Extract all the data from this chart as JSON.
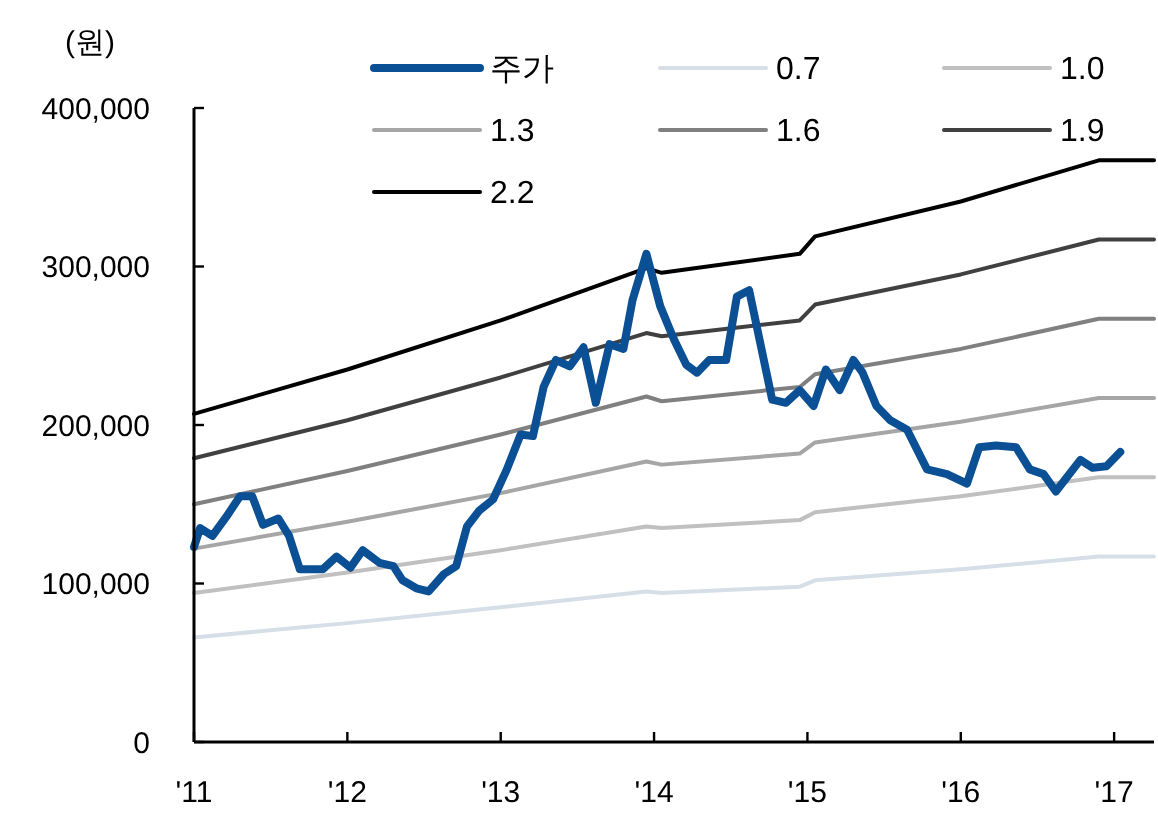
{
  "chart_data": {
    "type": "line",
    "ylabel": "(원)",
    "xlim": [
      2011,
      2017.26
    ],
    "ylim": [
      0,
      400000
    ],
    "xticks": [
      {
        "value": 2011,
        "label": "'11"
      },
      {
        "value": 2012,
        "label": "'12"
      },
      {
        "value": 2013,
        "label": "'13"
      },
      {
        "value": 2014,
        "label": "'14"
      },
      {
        "value": 2015,
        "label": "'15"
      },
      {
        "value": 2016,
        "label": "'16"
      },
      {
        "value": 2017,
        "label": "'17"
      }
    ],
    "yticks": [
      {
        "value": 0,
        "label": "0"
      },
      {
        "value": 100000,
        "label": "100,000"
      },
      {
        "value": 200000,
        "label": "200,000"
      },
      {
        "value": 300000,
        "label": "300,000"
      },
      {
        "value": 400000,
        "label": "400,000"
      }
    ],
    "grid": false,
    "legend": "top",
    "marker": "none",
    "line_style": "solid",
    "series": [
      {
        "name": "주가",
        "color": "#0b4f94",
        "x": [
          2011.0,
          2011.04,
          2011.12,
          2011.21,
          2011.3,
          2011.38,
          2011.45,
          2011.55,
          2011.62,
          2011.69,
          2011.84,
          2011.93,
          2012.02,
          2012.1,
          2012.21,
          2012.3,
          2012.36,
          2012.45,
          2012.53,
          2012.63,
          2012.71,
          2012.78,
          2012.86,
          2012.95,
          2013.04,
          2013.13,
          2013.21,
          2013.28,
          2013.36,
          2013.45,
          2013.54,
          2013.62,
          2013.71,
          2013.8,
          2013.86,
          2013.95,
          2014.04,
          2014.13,
          2014.21,
          2014.28,
          2014.36,
          2014.47,
          2014.54,
          2014.62,
          2014.77,
          2014.86,
          2014.95,
          2015.04,
          2015.12,
          2015.21,
          2015.3,
          2015.36,
          2015.45,
          2015.54,
          2015.65,
          2015.78,
          2015.91,
          2016.04,
          2016.12,
          2016.23,
          2016.36,
          2016.45,
          2016.54,
          2016.62,
          2016.78,
          2016.86,
          2016.95,
          2017.04
        ],
        "values": [
          123000,
          135000,
          130000,
          142000,
          155000,
          155000,
          137000,
          141000,
          130000,
          109000,
          109000,
          117000,
          110000,
          121000,
          113000,
          111000,
          102000,
          97000,
          95000,
          106000,
          111000,
          136000,
          146000,
          153000,
          172000,
          194000,
          193000,
          224000,
          241000,
          237000,
          249000,
          214000,
          251000,
          248000,
          279000,
          308000,
          275000,
          254000,
          238000,
          233000,
          241000,
          241000,
          281000,
          285000,
          216000,
          214000,
          222000,
          212000,
          235000,
          222000,
          241000,
          233000,
          212000,
          203000,
          197000,
          172000,
          169000,
          163000,
          186000,
          187000,
          186000,
          172000,
          169000,
          158000,
          178000,
          173000,
          174000,
          183000
        ]
      },
      {
        "name": "0.7",
        "color": "#d6dfe8",
        "x": [
          2011,
          2012,
          2013,
          2013.95,
          2014.05,
          2014.95,
          2015.05,
          2016,
          2016.9,
          2017.26
        ],
        "values": [
          66000,
          75000,
          85000,
          95000,
          94000,
          98000,
          102000,
          109000,
          117000,
          117000
        ]
      },
      {
        "name": "1.0",
        "color": "#c0c0c0",
        "x": [
          2011,
          2012,
          2013,
          2013.95,
          2014.05,
          2014.95,
          2015.05,
          2016,
          2016.9,
          2017.26
        ],
        "values": [
          94000,
          107000,
          121000,
          136000,
          135000,
          140000,
          145000,
          155000,
          167000,
          167000
        ]
      },
      {
        "name": "1.3",
        "color": "#a6a6a6",
        "x": [
          2011,
          2012,
          2013,
          2013.95,
          2014.05,
          2014.95,
          2015.05,
          2016,
          2016.9,
          2017.26
        ],
        "values": [
          122000,
          139000,
          157000,
          177000,
          175000,
          182000,
          189000,
          202000,
          217000,
          217000
        ]
      },
      {
        "name": "1.6",
        "color": "#808080",
        "x": [
          2011,
          2012,
          2013,
          2013.95,
          2014.05,
          2014.95,
          2015.05,
          2016,
          2016.9,
          2017.26
        ],
        "values": [
          150000,
          171000,
          194000,
          218000,
          215000,
          224000,
          232000,
          248000,
          267000,
          267000
        ]
      },
      {
        "name": "1.9",
        "color": "#404040",
        "x": [
          2011,
          2012,
          2013,
          2013.95,
          2014.05,
          2014.95,
          2015.05,
          2016,
          2016.9,
          2017.26
        ],
        "values": [
          179000,
          203000,
          230000,
          258000,
          256000,
          266000,
          276000,
          295000,
          317000,
          317000
        ]
      },
      {
        "name": "2.2",
        "color": "#000000",
        "x": [
          2011,
          2012,
          2013,
          2013.95,
          2014.05,
          2014.95,
          2015.05,
          2016,
          2016.9,
          2017.26
        ],
        "values": [
          207000,
          235000,
          266000,
          299000,
          296000,
          308000,
          319000,
          341000,
          367000,
          367000
        ]
      }
    ]
  }
}
